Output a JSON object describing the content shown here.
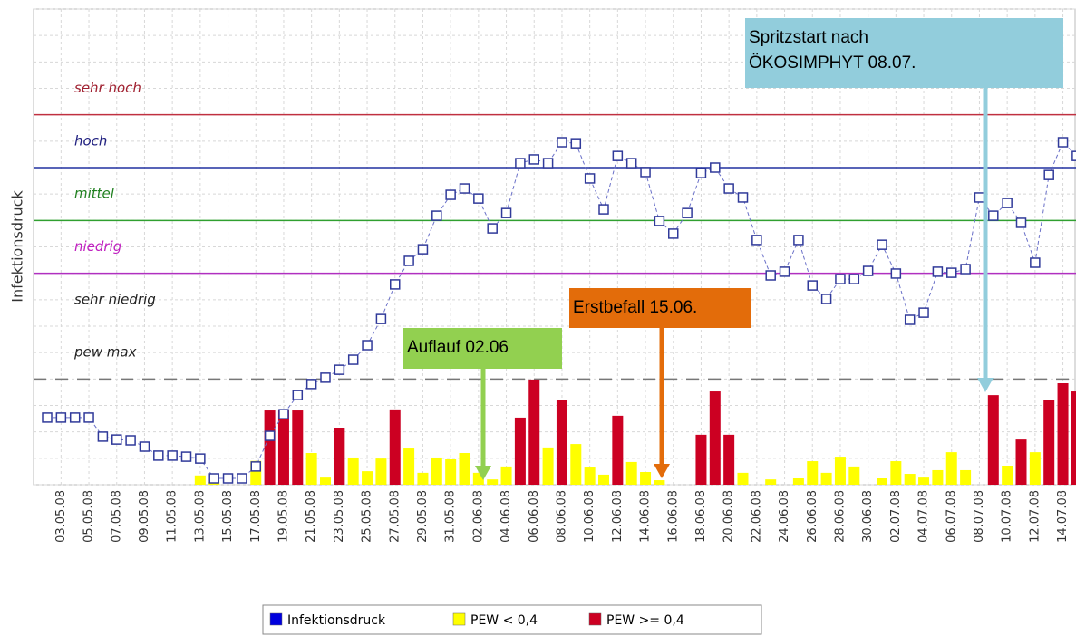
{
  "chart_data": {
    "type": "bar-line",
    "y_label": "Infektionsdruck",
    "categories": [
      null,
      "03.05.08",
      null,
      "05.05.08",
      null,
      "07.05.08",
      null,
      "09.05.08",
      null,
      "11.05.08",
      null,
      "13.05.08",
      null,
      "15.05.08",
      null,
      "17.05.08",
      null,
      "19.05.08",
      null,
      "21.05.08",
      null,
      "23.05.08",
      null,
      "25.05.08",
      null,
      "27.05.08",
      null,
      "29.05.08",
      null,
      "31.05.08",
      null,
      "02.06.08",
      null,
      "04.06.08",
      null,
      "06.06.08",
      null,
      "08.06.08",
      null,
      "10.06.08",
      null,
      "12.06.08",
      null,
      "14.06.08",
      null,
      "16.06.08",
      null,
      "18.06.08",
      null,
      "20.06.08",
      null,
      "22.06.08",
      null,
      "24.06.08",
      null,
      "26.06.08",
      null,
      "28.06.08",
      null,
      "30.06.08",
      null,
      "02.07.08",
      null,
      "04.07.08",
      null,
      "06.07.08",
      null,
      "08.07.08",
      null,
      "10.07.08",
      null,
      "12.07.08",
      null,
      "14.07.08",
      null
    ],
    "series": [
      {
        "name": "Infektionsdruck",
        "kind": "line",
        "color": "#0000dd",
        "values": [
          2.54,
          2.54,
          2.54,
          2.54,
          1.82,
          1.71,
          1.68,
          1.44,
          1.1,
          1.1,
          1.06,
          0.99,
          0.24,
          0.24,
          0.24,
          0.69,
          1.85,
          2.67,
          3.39,
          3.81,
          4.05,
          4.35,
          4.73,
          5.28,
          6.27,
          7.58,
          8.47,
          8.91,
          10.18,
          10.97,
          11.21,
          10.83,
          9.7,
          10.28,
          12.17,
          12.31,
          12.17,
          12.96,
          12.92,
          11.59,
          10.42,
          12.44,
          12.17,
          11.83,
          9.98,
          9.5,
          10.28,
          11.79,
          12.0,
          11.21,
          10.87,
          9.26,
          7.92,
          8.06,
          9.26,
          7.54,
          7.03,
          7.78,
          7.78,
          8.09,
          9.08,
          7.99,
          6.24,
          6.51,
          8.06,
          8.02,
          8.16,
          10.87,
          10.18,
          10.66,
          9.91,
          8.4,
          11.72,
          12.96,
          12.44
        ]
      },
      {
        "name": "PEW < 0,4",
        "kind": "bar",
        "color": "#ffff00",
        "values": [
          null,
          null,
          null,
          null,
          null,
          null,
          null,
          null,
          null,
          null,
          null,
          0.35,
          0.1,
          null,
          null,
          0.9,
          null,
          null,
          null,
          1.2,
          0.27,
          null,
          1.03,
          0.51,
          0.99,
          null,
          1.37,
          0.45,
          1.03,
          0.96,
          1.2,
          0.45,
          0.2,
          0.69,
          null,
          null,
          1.41,
          null,
          1.54,
          0.65,
          0.38,
          null,
          0.86,
          0.48,
          0.17,
          null,
          null,
          null,
          null,
          null,
          0.45,
          null,
          0.2,
          null,
          0.24,
          0.89,
          0.45,
          1.06,
          0.69,
          null,
          0.24,
          0.89,
          0.41,
          0.27,
          0.55,
          1.23,
          0.55,
          null,
          null,
          0.72,
          null,
          1.23,
          null,
          null,
          null
        ]
      },
      {
        "name": "PEW >= 0,4",
        "kind": "bar",
        "color": "#cc0022",
        "values": [
          null,
          null,
          null,
          null,
          null,
          null,
          null,
          null,
          null,
          null,
          null,
          null,
          null,
          null,
          null,
          null,
          2.81,
          2.81,
          2.81,
          null,
          null,
          2.16,
          null,
          null,
          null,
          2.85,
          null,
          null,
          null,
          null,
          null,
          null,
          null,
          null,
          2.54,
          3.98,
          null,
          3.22,
          null,
          null,
          null,
          2.61,
          null,
          null,
          null,
          null,
          null,
          1.89,
          3.53,
          1.89,
          null,
          null,
          null,
          null,
          null,
          null,
          null,
          null,
          null,
          null,
          null,
          null,
          null,
          null,
          null,
          null,
          null,
          null,
          3.39,
          null,
          1.71,
          null,
          3.22,
          3.84,
          3.53
        ]
      }
    ],
    "ylim": [
      0,
      18
    ],
    "yticks": [
      0,
      1,
      2,
      3,
      4,
      5,
      6,
      7,
      8,
      9,
      10,
      11,
      12,
      13,
      14,
      15,
      16,
      17,
      18
    ],
    "grid": true,
    "reference_lines": [
      {
        "value": 14,
        "color": "#c03040",
        "style": "solid"
      },
      {
        "value": 12,
        "color": "#2030a0",
        "style": "solid"
      },
      {
        "value": 10,
        "color": "#30a030",
        "style": "solid"
      },
      {
        "value": 8,
        "color": "#b030c0",
        "style": "solid"
      },
      {
        "value": 4,
        "color": "#777777",
        "style": "dashed"
      }
    ],
    "level_labels": [
      {
        "label": "sehr hoch",
        "value": 15,
        "color": "#a02030"
      },
      {
        "label": "hoch",
        "value": 13,
        "color": "#202080"
      },
      {
        "label": "mittel",
        "value": 11,
        "color": "#208020"
      },
      {
        "label": "niedrig",
        "value": 9,
        "color": "#c020c0"
      },
      {
        "label": "sehr niedrig",
        "value": 7,
        "color": "#222222"
      },
      {
        "label": "pew max",
        "value": 5,
        "color": "#222222"
      }
    ],
    "annotations": [
      {
        "lines": [
          "Auflauf 02.06"
        ],
        "color": "#92d050"
      },
      {
        "lines": [
          "Erstbefall 15.06."
        ],
        "color": "#e36c0a"
      },
      {
        "lines": [
          "Spritzstart nach",
          "ÖKOSIMPHYT 08.07."
        ],
        "color": "#92cddc"
      }
    ],
    "legend": "bottom"
  }
}
